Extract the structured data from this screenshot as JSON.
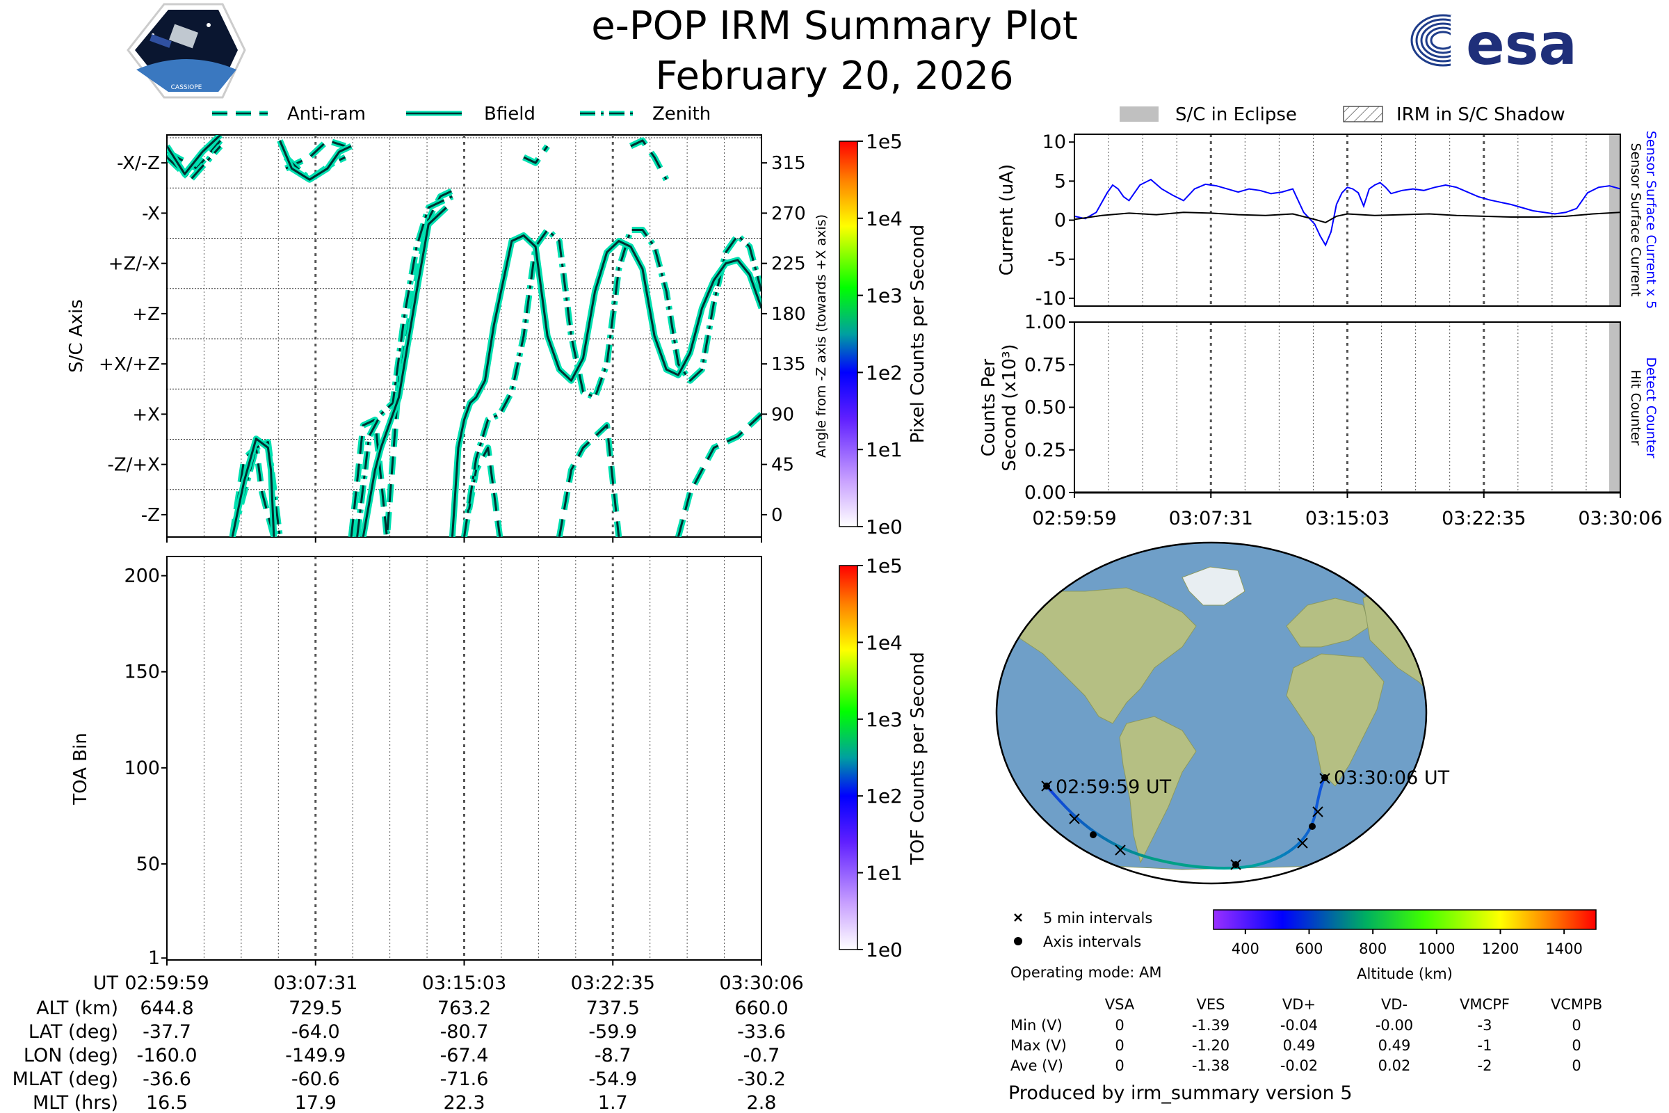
{
  "header": {
    "title": "e-POP IRM Summary Plot",
    "date": "February 20, 2026",
    "logo_left": "CASSIOPE",
    "logo_right": "esa"
  },
  "colors": {
    "teal": "#00e0b0",
    "dark": "#003030",
    "blue": "#0000ff",
    "black": "#000000",
    "eclipse": "#c0c0c0",
    "ocean": "#6f9fc8",
    "land": "#b5bf83"
  },
  "chart_data": [
    {
      "id": "sc_axis",
      "type": "line",
      "ylabel": "S/C Axis",
      "y2label": "Angle from -Z axis (towards +X axis)",
      "ylim": [
        -20,
        340
      ],
      "yticks": [
        0,
        45,
        90,
        135,
        180,
        225,
        270,
        315
      ],
      "ytick_labels": [
        "-Z",
        "-Z/+X",
        "+X",
        "+X/+Z",
        "+Z",
        "+Z/-X",
        "-X",
        "-X/-Z"
      ],
      "legend": [
        "Anti-ram",
        "Bfield",
        "Zenith"
      ],
      "series": [
        {
          "name": "Bfield",
          "x": [
            0.0,
            0.03,
            0.06,
            0.09,
            0.11,
            0.13,
            0.15,
            0.17,
            0.175,
            0.18,
            0.19,
            0.21,
            0.24,
            0.27,
            0.29,
            0.31,
            0.33,
            0.35,
            0.36,
            0.37,
            0.39,
            0.42,
            0.44,
            0.45,
            0.46,
            0.47,
            0.48,
            0.49,
            0.5,
            0.51,
            0.52,
            0.535,
            0.55,
            0.58,
            0.6,
            0.62,
            0.64,
            0.66,
            0.68,
            0.7,
            0.72,
            0.74,
            0.76,
            0.78,
            0.8,
            0.82,
            0.84,
            0.86,
            0.88,
            0.9,
            0.92,
            0.94,
            0.96,
            0.98,
            1.0
          ],
          "y": [
            330,
            305,
            325,
            340,
            -20,
            30,
            68,
            60,
            40,
            -20,
            335,
            310,
            300,
            310,
            325,
            330,
            -20,
            40,
            60,
            75,
            105,
            200,
            260,
            265,
            270,
            275,
            -20,
            60,
            85,
            100,
            105,
            120,
            170,
            245,
            250,
            240,
            160,
            130,
            120,
            140,
            200,
            235,
            245,
            240,
            220,
            160,
            130,
            125,
            145,
            185,
            210,
            225,
            228,
            215,
            185
          ]
        },
        {
          "name": "Anti-ram",
          "x": [
            0.0,
            0.05,
            0.09,
            0.11,
            0.13,
            0.15,
            0.16,
            0.18,
            0.2,
            0.24,
            0.27,
            0.3,
            0.31,
            0.33,
            0.35,
            0.37,
            0.39,
            0.42,
            0.44,
            0.46,
            0.48,
            0.5,
            0.52,
            0.54,
            0.56,
            0.6,
            0.62,
            0.64,
            0.66,
            0.68,
            0.7,
            0.74,
            0.76,
            0.78,
            0.8,
            0.82,
            0.84,
            0.86,
            0.88,
            0.9,
            0.92,
            0.96,
            1.0
          ],
          "y": [
            325,
            310,
            335,
            -20,
            50,
            60,
            20,
            -20,
            310,
            320,
            335,
            330,
            -20,
            80,
            85,
            -20,
            120,
            210,
            265,
            285,
            290,
            -20,
            40,
            60,
            -20,
            320,
            315,
            330,
            -20,
            40,
            60,
            80,
            -20,
            330,
            335,
            320,
            300,
            -20,
            20,
            40,
            60,
            70,
            90
          ]
        },
        {
          "name": "Zenith",
          "x": [
            0.0,
            0.04,
            0.09,
            0.11,
            0.13,
            0.15,
            0.17,
            0.19,
            0.2,
            0.24,
            0.28,
            0.3,
            0.32,
            0.34,
            0.36,
            0.38,
            0.4,
            0.42,
            0.44,
            0.46,
            0.48,
            0.5,
            0.52,
            0.54,
            0.56,
            0.58,
            0.6,
            0.62,
            0.64,
            0.66,
            0.68,
            0.7,
            0.72,
            0.74,
            0.76,
            0.78,
            0.8,
            0.82,
            0.84,
            0.86,
            0.88,
            0.9,
            0.92,
            0.94,
            0.96,
            0.98,
            1.0
          ],
          "y": [
            320,
            300,
            330,
            -20,
            20,
            60,
            65,
            -20,
            320,
            300,
            315,
            320,
            -20,
            70,
            90,
            100,
            180,
            240,
            275,
            280,
            285,
            -20,
            50,
            85,
            90,
            110,
            160,
            240,
            255,
            245,
            160,
            110,
            105,
            135,
            220,
            255,
            255,
            240,
            200,
            135,
            120,
            130,
            190,
            235,
            250,
            240,
            200
          ]
        }
      ]
    },
    {
      "id": "toa",
      "type": "heatmap",
      "ylabel": "TOA Bin",
      "ylim": [
        0,
        210
      ],
      "yticks": [
        1,
        50,
        100,
        150,
        200
      ],
      "values": []
    },
    {
      "id": "pixel_colorbar",
      "type": "colorbar",
      "label": "Pixel Counts per Second",
      "ticks": [
        "1e0",
        "1e1",
        "1e2",
        "1e3",
        "1e4",
        "1e5"
      ]
    },
    {
      "id": "tof_colorbar",
      "type": "colorbar",
      "label": "TOF Counts per Second",
      "ticks": [
        "1e0",
        "1e1",
        "1e2",
        "1e3",
        "1e4",
        "1e5"
      ]
    },
    {
      "id": "current",
      "type": "line",
      "ylabel": "Current (uA)",
      "ylim": [
        -11,
        11
      ],
      "yticks": [
        -10,
        -5,
        0,
        5,
        10
      ],
      "right_labels": [
        "Sensor Surface Current x 5",
        "Sensor Surface Current"
      ],
      "series": [
        {
          "name": "Sensor Surface Current x 5",
          "color": "#0000ff",
          "x": [
            0.0,
            0.02,
            0.04,
            0.06,
            0.07,
            0.08,
            0.09,
            0.1,
            0.12,
            0.14,
            0.16,
            0.18,
            0.2,
            0.22,
            0.24,
            0.26,
            0.28,
            0.3,
            0.32,
            0.34,
            0.36,
            0.38,
            0.4,
            0.42,
            0.44,
            0.45,
            0.46,
            0.47,
            0.48,
            0.49,
            0.5,
            0.51,
            0.52,
            0.53,
            0.54,
            0.55,
            0.56,
            0.57,
            0.58,
            0.6,
            0.62,
            0.64,
            0.66,
            0.68,
            0.7,
            0.72,
            0.74,
            0.76,
            0.78,
            0.8,
            0.82,
            0.84,
            0.86,
            0.88,
            0.9,
            0.92,
            0.94,
            0.96,
            0.98,
            1.0
          ],
          "y": [
            0.5,
            0.2,
            1.0,
            3.5,
            4.5,
            4.0,
            3.0,
            2.5,
            4.5,
            5.2,
            4.0,
            3.2,
            2.5,
            4.0,
            4.6,
            4.4,
            4.0,
            3.6,
            4.0,
            3.8,
            3.4,
            3.6,
            4.0,
            1.0,
            -0.5,
            -2.0,
            -3.2,
            -1.5,
            2.0,
            3.5,
            4.2,
            4.0,
            3.5,
            1.8,
            4.0,
            4.5,
            4.8,
            4.2,
            3.4,
            3.8,
            4.0,
            3.8,
            4.2,
            4.5,
            4.2,
            3.6,
            3.0,
            2.6,
            2.3,
            2.0,
            1.6,
            1.2,
            1.0,
            0.8,
            1.0,
            1.5,
            3.5,
            4.2,
            4.4,
            4.0
          ]
        },
        {
          "name": "Sensor Surface Current",
          "color": "#000000",
          "x": [
            0.0,
            0.05,
            0.1,
            0.15,
            0.2,
            0.25,
            0.3,
            0.35,
            0.4,
            0.44,
            0.46,
            0.48,
            0.5,
            0.55,
            0.6,
            0.65,
            0.7,
            0.75,
            0.8,
            0.85,
            0.9,
            0.95,
            1.0
          ],
          "y": [
            0.1,
            0.6,
            0.9,
            0.7,
            1.0,
            0.9,
            0.7,
            0.6,
            0.8,
            0.1,
            -0.3,
            0.5,
            0.8,
            0.6,
            0.7,
            0.8,
            0.6,
            0.5,
            0.4,
            0.4,
            0.5,
            0.8,
            1.0
          ]
        }
      ]
    },
    {
      "id": "counts",
      "type": "line",
      "ylabel": "Counts Per Second (x10³)",
      "ylabel_line1": "Counts Per",
      "ylabel_line2": "Second (x10³)",
      "ylim": [
        0,
        1
      ],
      "yticks": [
        0.0,
        0.25,
        0.5,
        0.75,
        1.0
      ],
      "right_labels": [
        "Detect Counter",
        "Hit Counter"
      ],
      "series": [
        {
          "name": "Detect Counter",
          "color": "#0000ff",
          "x": [
            0,
            1
          ],
          "y": [
            0,
            0
          ]
        },
        {
          "name": "Hit Counter",
          "color": "#000000",
          "x": [
            0,
            1
          ],
          "y": [
            0,
            0
          ]
        }
      ]
    },
    {
      "id": "orbit_map",
      "type": "map",
      "track_start_label": "02:59:59 UT",
      "track_end_label": "03:30:06 UT",
      "track_points": [
        {
          "lon": -160.0,
          "lat": -37.7
        },
        {
          "lon": -155.0,
          "lat": -50.0
        },
        {
          "lon": -149.9,
          "lat": -64.0
        },
        {
          "lon": -67.4,
          "lat": -80.7
        },
        {
          "lon": -8.7,
          "lat": -59.9
        },
        {
          "lon": -0.7,
          "lat": -33.6
        }
      ],
      "colorbar_label": "Altitude (km)",
      "colorbar_ticks": [
        400,
        600,
        800,
        1000,
        1200,
        1400
      ],
      "colorbar_range": [
        300,
        1500
      ]
    }
  ],
  "top_legend": {
    "eclipse": "S/C in Eclipse",
    "shadow": "IRM in S/C Shadow"
  },
  "time_ticks": [
    "02:59:59",
    "03:07:31",
    "03:15:03",
    "03:22:35",
    "03:30:06"
  ],
  "ephemeris": {
    "labels": [
      "UT",
      "ALT (km)",
      "LAT (deg)",
      "LON (deg)",
      "MLAT (deg)",
      "MLT (hrs)"
    ],
    "rows": [
      [
        "644.8",
        "729.5",
        "763.2",
        "737.5",
        "660.0"
      ],
      [
        "-37.7",
        "-64.0",
        "-80.7",
        "-59.9",
        "-33.6"
      ],
      [
        "-160.0",
        "-149.9",
        "-67.4",
        "-8.7",
        "-0.7"
      ],
      [
        "-36.6",
        "-60.6",
        "-71.6",
        "-54.9",
        "-30.2"
      ],
      [
        "16.5",
        "17.9",
        "22.3",
        "1.7",
        "2.8"
      ]
    ]
  },
  "map_legend": {
    "five_min": "5 min intervals",
    "axis": "Axis intervals"
  },
  "operating_mode": "Operating mode: AM",
  "voltage_table": {
    "columns": [
      "VSA",
      "VES",
      "VD+",
      "VD-",
      "VMCPF",
      "VCMPB"
    ],
    "rows": [
      {
        "label": "Min (V)",
        "values": [
          "0",
          "-1.39",
          "-0.04",
          "-0.00",
          "-3",
          "0"
        ]
      },
      {
        "label": "Max (V)",
        "values": [
          "0",
          "-1.20",
          "0.49",
          "0.49",
          "-1",
          "0"
        ]
      },
      {
        "label": "Ave (V)",
        "values": [
          "0",
          "-1.38",
          "-0.02",
          "0.02",
          "-2",
          "0"
        ]
      }
    ]
  },
  "footer": "Produced by irm_summary version 5"
}
